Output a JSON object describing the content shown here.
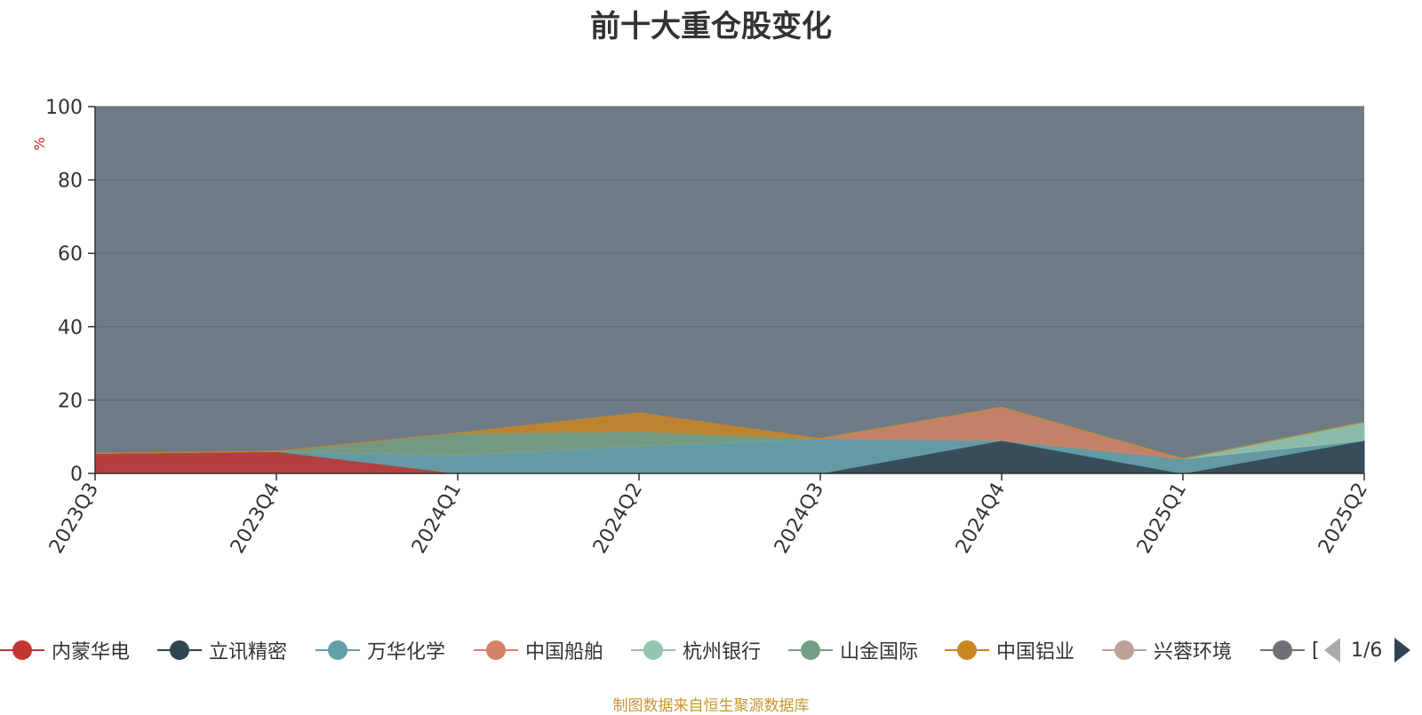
{
  "chart_data": {
    "type": "area",
    "title": "前十大重仓股变化",
    "ylabel": "%",
    "ylim": [
      0,
      100
    ],
    "yticks": [
      0,
      20,
      40,
      60,
      80,
      100
    ],
    "grid": true,
    "legend_position": "bottom",
    "categories": [
      "2023Q3",
      "2023Q4",
      "2024Q1",
      "2024Q2",
      "2024Q3",
      "2024Q4",
      "2025Q1",
      "2025Q2"
    ],
    "series": [
      {
        "name": "内蒙华电",
        "color": "#c23531",
        "values": [
          5.5,
          6.0,
          0.0,
          0.0,
          0.0,
          0.0,
          0.0,
          0.0
        ]
      },
      {
        "name": "立讯精密",
        "color": "#2f4554",
        "values": [
          0.0,
          0.0,
          0.0,
          0.0,
          0.0,
          9.0,
          0.0,
          9.0
        ]
      },
      {
        "name": "万华化学",
        "color": "#61a0a8",
        "values": [
          0.0,
          0.0,
          5.0,
          7.5,
          9.5,
          0.0,
          4.0,
          0.0
        ]
      },
      {
        "name": "中国船舶",
        "color": "#d48265",
        "values": [
          0.0,
          0.0,
          0.0,
          0.0,
          0.0,
          9.0,
          0.0,
          0.0
        ]
      },
      {
        "name": "杭州银行",
        "color": "#91c7ae",
        "values": [
          0.0,
          0.0,
          0.0,
          0.0,
          0.0,
          0.0,
          0.0,
          5.0
        ]
      },
      {
        "name": "山金国际",
        "color": "#749f83",
        "values": [
          0.0,
          0.0,
          6.0,
          4.0,
          0.0,
          0.0,
          0.0,
          0.0
        ]
      },
      {
        "name": "中国铝业",
        "color": "#ca8622",
        "values": [
          0.0,
          0.0,
          0.0,
          5.0,
          0.0,
          0.0,
          0.0,
          0.0
        ]
      }
    ]
  },
  "legend": {
    "items": [
      {
        "label": "内蒙华电",
        "color": "#c23531"
      },
      {
        "label": "立讯精密",
        "color": "#2f4554"
      },
      {
        "label": "万华化学",
        "color": "#61a0a8"
      },
      {
        "label": "中国船舶",
        "color": "#d48265"
      },
      {
        "label": "杭州银行",
        "color": "#91c7ae"
      },
      {
        "label": "山金国际",
        "color": "#749f83"
      },
      {
        "label": "中国铝业",
        "color": "#ca8622"
      },
      {
        "label": "兴蓉环境",
        "color": "#bda29a"
      },
      {
        "label": "[",
        "color": "#6e7074"
      }
    ],
    "page_indicator": "1/6"
  },
  "source_note": "制图数据来自恒生聚源数据库"
}
